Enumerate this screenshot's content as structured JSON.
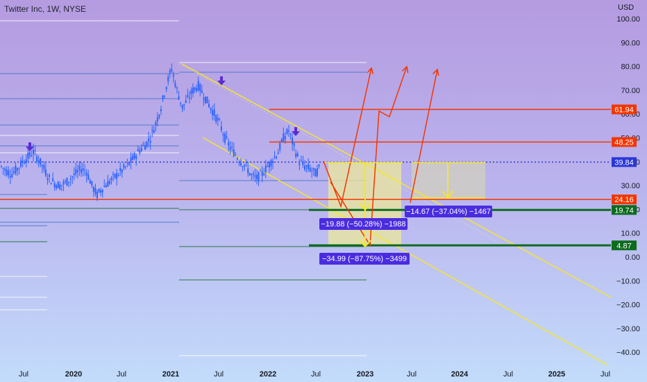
{
  "header": {
    "title": "Twitter Inc, 1W, NYSE"
  },
  "chart_data": {
    "type": "candlestick",
    "title": "Twitter Inc, 1W, NYSE",
    "currency": "USD",
    "ylim": [
      -45,
      105
    ],
    "y_ticks": [
      "100.00",
      "90.00",
      "80.00",
      "70.00",
      "60.00",
      "50.00",
      "40.00",
      "30.00",
      "20.00",
      "10.00",
      "0.00",
      "−10.00",
      "−20.00",
      "−30.00",
      "−40.00"
    ],
    "x_ticks": [
      {
        "label": "Jul",
        "year": false
      },
      {
        "label": "2020",
        "year": true
      },
      {
        "label": "Jul",
        "year": false
      },
      {
        "label": "2021",
        "year": true
      },
      {
        "label": "Jul",
        "year": false
      },
      {
        "label": "2022",
        "year": true
      },
      {
        "label": "Jul",
        "year": false
      },
      {
        "label": "2023",
        "year": true
      },
      {
        "label": "Jul",
        "year": false
      },
      {
        "label": "2024",
        "year": true
      },
      {
        "label": "Jul",
        "year": false
      },
      {
        "label": "2025",
        "year": true
      },
      {
        "label": "Jul",
        "year": false
      }
    ],
    "price_series_approx": [
      38,
      36,
      35,
      37,
      40,
      42,
      44,
      41,
      37,
      33,
      31,
      30,
      31,
      33,
      35,
      37,
      36,
      30,
      26,
      29,
      31,
      33,
      35,
      37,
      39,
      42,
      45,
      47,
      50,
      56,
      63,
      72,
      79,
      70,
      63,
      66,
      70,
      72,
      68,
      64,
      60,
      56,
      50,
      46,
      43,
      40,
      38,
      34,
      33,
      35,
      38,
      41,
      44,
      50,
      53,
      46,
      40,
      38,
      37,
      35,
      38
    ],
    "price_levels": [
      {
        "value": 61.94,
        "label": "61.94",
        "color": "#f23600"
      },
      {
        "value": 48.25,
        "label": "48.25",
        "color": "#f23600"
      },
      {
        "value": 39.84,
        "label": "39.84",
        "color": "#2a37d6"
      },
      {
        "value": 24.16,
        "label": "24.16",
        "color": "#f23600"
      },
      {
        "value": 19.74,
        "label": "19.74",
        "color": "#0d6b1f"
      },
      {
        "value": 4.87,
        "label": "4.87",
        "color": "#0d6b1f"
      }
    ],
    "annotations": [
      "−19.88 (−50.28%) −1988",
      "−34.99 (−87.75%) −3499",
      "−14.67 (−37.04%) −1467"
    ],
    "colors": {
      "candle": "#2962ff",
      "channel": "#f5e62e",
      "forecast": "#f23600",
      "marker": "#5b2cd6",
      "measure_bg": "#ece89a"
    }
  }
}
